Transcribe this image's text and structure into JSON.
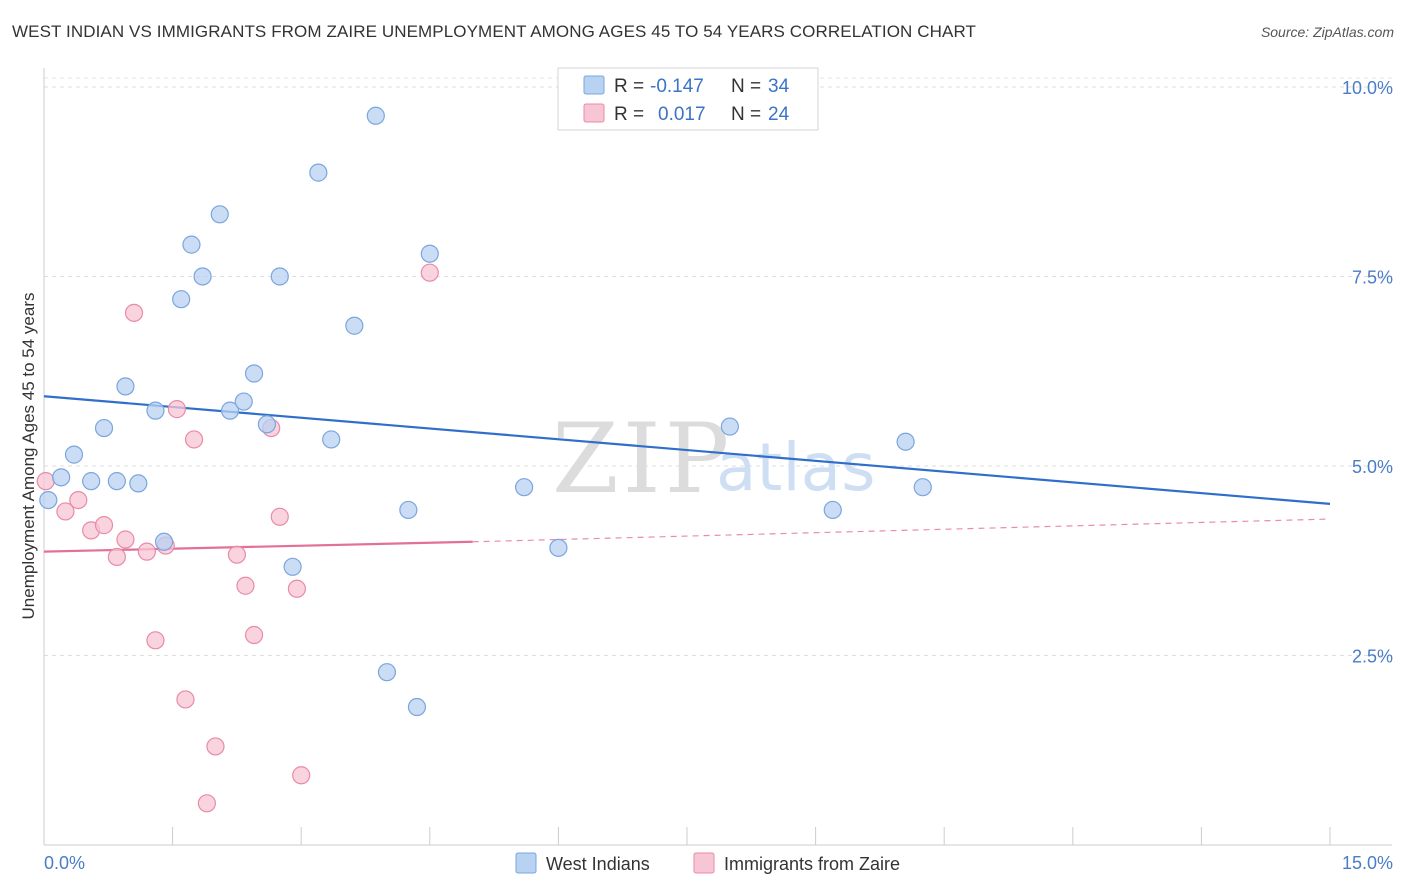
{
  "header": {
    "title": "WEST INDIAN VS IMMIGRANTS FROM ZAIRE UNEMPLOYMENT AMONG AGES 45 TO 54 YEARS CORRELATION CHART",
    "source": "Source: ZipAtlas.com"
  },
  "watermark": {
    "zip": "ZIP",
    "atlas": "atlas"
  },
  "colors": {
    "blue_fill": "#b8d2f2",
    "blue_stroke": "#7aa6de",
    "blue_line": "#2f6fcb",
    "pink_fill": "#f7c6d4",
    "pink_stroke": "#e98aa8",
    "pink_line": "#e2709a",
    "tick_text": "#4a7cc9"
  },
  "legend": {
    "rows": [
      {
        "r_label": "R =",
        "r_value": "-0.147",
        "n_label": "N =",
        "n_value": "34"
      },
      {
        "r_label": "R =",
        "r_value": "0.017",
        "n_label": "N =",
        "n_value": "24"
      }
    ]
  },
  "bottom_legend": {
    "series1": "West Indians",
    "series2": "Immigrants from Zaire"
  },
  "chart_data": {
    "type": "scatter",
    "title": "WEST INDIAN VS IMMIGRANTS FROM ZAIRE UNEMPLOYMENT AMONG AGES 45 TO 54 YEARS CORRELATION CHART",
    "xlabel": "",
    "ylabel": "Unemployment Among Ages 45 to 54 years",
    "xlim": [
      0,
      15
    ],
    "ylim": [
      0,
      10.25
    ],
    "x_tick_labels": [
      "0.0%",
      "15.0%"
    ],
    "y_ticks": [
      2.5,
      5.0,
      7.5,
      10.0
    ],
    "y_tick_labels": [
      "2.5%",
      "5.0%",
      "7.5%",
      "10.0%"
    ],
    "grid": true,
    "legend_position": "top-center",
    "series": [
      {
        "name": "West Indians",
        "r": -0.147,
        "n": 34,
        "trend": {
          "x": [
            0,
            15
          ],
          "y": [
            5.92,
            4.5
          ]
        },
        "points": [
          [
            0.05,
            4.55
          ],
          [
            0.2,
            4.85
          ],
          [
            0.35,
            5.15
          ],
          [
            0.55,
            4.8
          ],
          [
            0.7,
            5.5
          ],
          [
            0.85,
            4.8
          ],
          [
            0.95,
            6.05
          ],
          [
            1.1,
            4.77
          ],
          [
            1.3,
            5.73
          ],
          [
            1.4,
            4.0
          ],
          [
            1.6,
            7.2
          ],
          [
            1.72,
            7.92
          ],
          [
            1.85,
            7.5
          ],
          [
            2.05,
            8.32
          ],
          [
            2.17,
            5.73
          ],
          [
            2.45,
            6.22
          ],
          [
            2.33,
            5.85
          ],
          [
            2.6,
            5.55
          ],
          [
            2.75,
            7.5
          ],
          [
            2.9,
            3.67
          ],
          [
            3.2,
            8.87
          ],
          [
            3.35,
            5.35
          ],
          [
            3.62,
            6.85
          ],
          [
            3.87,
            9.62
          ],
          [
            4.0,
            2.28
          ],
          [
            4.25,
            4.42
          ],
          [
            4.35,
            1.82
          ],
          [
            4.5,
            7.8
          ],
          [
            5.6,
            4.72
          ],
          [
            6.0,
            3.92
          ],
          [
            8.0,
            5.52
          ],
          [
            9.2,
            4.42
          ],
          [
            10.05,
            5.32
          ],
          [
            10.25,
            4.72
          ]
        ]
      },
      {
        "name": "Immigrants from Zaire",
        "r": 0.017,
        "n": 24,
        "trend": {
          "x": [
            0,
            5
          ],
          "y": [
            3.87,
            4.0
          ],
          "dashed_to": [
            15,
            4.3
          ]
        },
        "points": [
          [
            0.02,
            4.8
          ],
          [
            0.25,
            4.4
          ],
          [
            0.4,
            4.55
          ],
          [
            0.55,
            4.15
          ],
          [
            0.7,
            4.22
          ],
          [
            0.85,
            3.8
          ],
          [
            0.95,
            4.03
          ],
          [
            1.05,
            7.02
          ],
          [
            1.2,
            3.87
          ],
          [
            1.3,
            2.7
          ],
          [
            1.42,
            3.95
          ],
          [
            1.55,
            5.75
          ],
          [
            1.65,
            1.92
          ],
          [
            1.75,
            5.35
          ],
          [
            1.9,
            0.55
          ],
          [
            2.0,
            1.3
          ],
          [
            2.25,
            3.83
          ],
          [
            2.35,
            3.42
          ],
          [
            2.45,
            2.77
          ],
          [
            2.65,
            5.5
          ],
          [
            2.75,
            4.33
          ],
          [
            2.95,
            3.38
          ],
          [
            3.0,
            0.92
          ],
          [
            4.5,
            7.55
          ]
        ]
      }
    ]
  }
}
